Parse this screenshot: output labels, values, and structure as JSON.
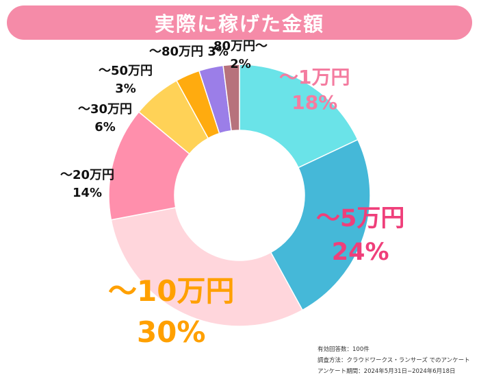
{
  "title": "実際に稼げた金額",
  "chart_data": {
    "type": "pie",
    "style": "donut",
    "slices": [
      {
        "label": "〜1万円",
        "value": 18,
        "value_text": "18%",
        "color": "#6ae3e8"
      },
      {
        "label": "〜5万円",
        "value": 24,
        "value_text": "24%",
        "color": "#45b8d8"
      },
      {
        "label": "〜10万円",
        "value": 30,
        "value_text": "30%",
        "color": "#ffd6dc"
      },
      {
        "label": "〜20万円",
        "value": 14,
        "value_text": "14%",
        "color": "#ff8fac"
      },
      {
        "label": "〜30万円",
        "value": 6,
        "value_text": "6%",
        "color": "#ffd257"
      },
      {
        "label": "〜50万円",
        "value": 3,
        "value_text": "3%",
        "color": "#ffab0f"
      },
      {
        "label": "〜80万円",
        "value": 3,
        "value_text": "3%",
        "color": "#9b7ee8"
      },
      {
        "label": "80万円〜",
        "value": 2,
        "value_text": "2%",
        "color": "#b7727c"
      }
    ]
  },
  "footnote": {
    "line1": "有効回答数：100件",
    "line2": "調査方法：クラウドワークス・ランサーズ でのアンケート",
    "line3": "アンケート期間：2024年5月31日−2024年6月18日"
  }
}
